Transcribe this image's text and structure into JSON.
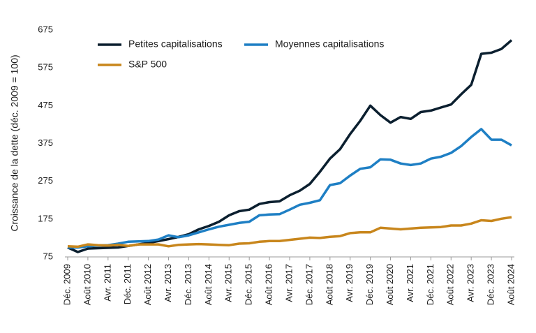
{
  "chart_data": {
    "type": "line",
    "y_label": "Croissance de la dette (déc. 2009 = 100)",
    "categories": [
      "Déc. 2009",
      null,
      "Août 2010",
      null,
      "Avr. 2011",
      null,
      "Déc. 2011",
      null,
      "Août 2012",
      null,
      "Avr. 2013",
      null,
      "Déc. 2013",
      null,
      "Août 2014",
      null,
      "Avr. 2015",
      null,
      "Déc. 2015",
      null,
      "Août 2016",
      null,
      "Avr. 2017",
      null,
      "Déc. 2017",
      null,
      "Août 2018",
      null,
      "Avr. 2019",
      null,
      "Déc. 2019",
      null,
      "Août 2020",
      null,
      "Avr. 2021",
      null,
      "Déc. 2021",
      null,
      "Août 2022",
      null,
      "Avr. 2023",
      null,
      "Déc. 2023",
      null,
      "Août 2024"
    ],
    "series": [
      {
        "name": "Petites capitalisations",
        "color": "#0b1f2f",
        "values": [
          100,
          88,
          97,
          98,
          99,
          100,
          104,
          108,
          112,
          117,
          122,
          128,
          135,
          148,
          157,
          168,
          185,
          196,
          200,
          215,
          220,
          222,
          238,
          250,
          268,
          300,
          335,
          360,
          400,
          435,
          475,
          450,
          430,
          445,
          440,
          458,
          462,
          470,
          478,
          505,
          530,
          612,
          615,
          625,
          648
        ]
      },
      {
        "name": "Moyennes capitalisations",
        "color": "#1e7fc4",
        "values": [
          100,
          100,
          103,
          105,
          106,
          110,
          115,
          116,
          117,
          121,
          132,
          127,
          132,
          140,
          148,
          155,
          160,
          165,
          168,
          185,
          187,
          188,
          200,
          213,
          218,
          225,
          265,
          270,
          290,
          308,
          312,
          333,
          332,
          322,
          318,
          322,
          335,
          340,
          350,
          368,
          392,
          413,
          385,
          385,
          370
        ]
      },
      {
        "name": "S&P 500",
        "color": "#c8861c",
        "values": [
          103,
          102,
          108,
          106,
          105,
          107,
          104,
          108,
          108,
          108,
          103,
          107,
          108,
          109,
          108,
          107,
          106,
          110,
          111,
          115,
          117,
          117,
          120,
          123,
          126,
          125,
          128,
          130,
          138,
          140,
          140,
          152,
          150,
          148,
          150,
          152,
          153,
          154,
          158,
          158,
          163,
          172,
          170,
          176,
          180
        ]
      }
    ],
    "ylim": [
      75,
      675
    ],
    "yticks": [
      75,
      175,
      275,
      375,
      475,
      575,
      675
    ],
    "grid": false
  }
}
